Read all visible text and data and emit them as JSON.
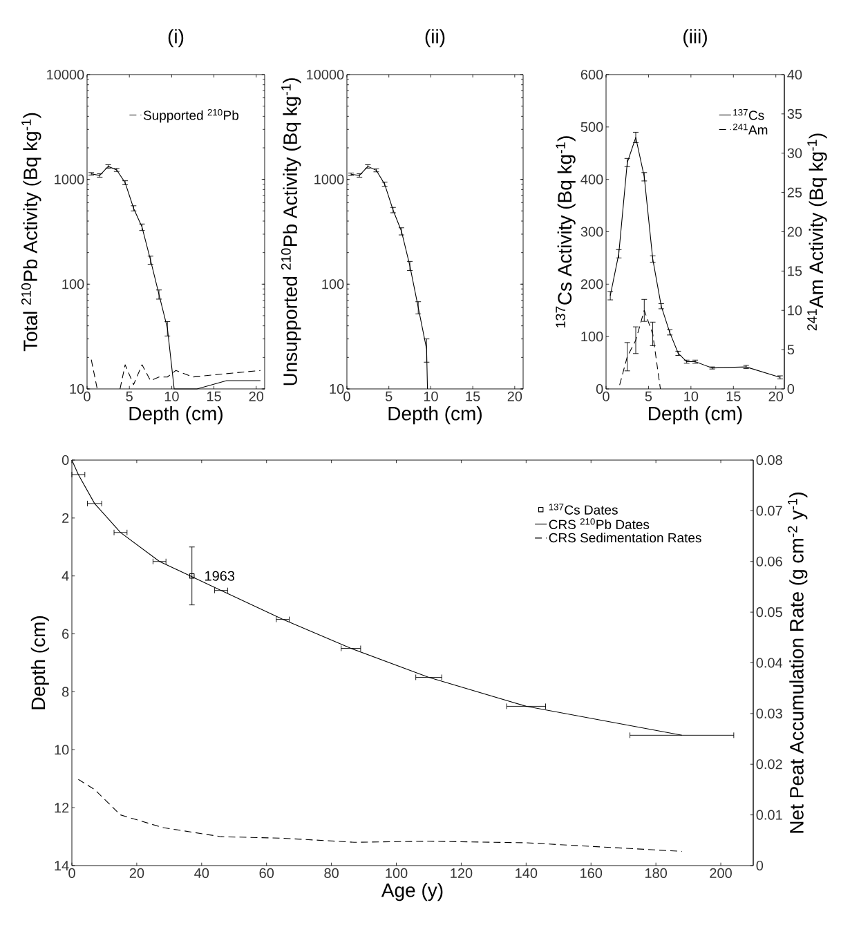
{
  "chart_data": [
    {
      "type": "line",
      "title": "(i)",
      "xlabel": "Depth (cm)",
      "ylabel": "Total $^{210}$Pb Activity (Bq kg$^{-1}$)",
      "log": "y",
      "xlim": [
        0,
        21
      ],
      "xticks": [
        0,
        5,
        10,
        15,
        20
      ],
      "ylim": [
        10,
        10000
      ],
      "yticks": [
        10,
        100,
        1000,
        10000
      ],
      "legend": "top",
      "series": [
        {
          "color": "#000000",
          "line_style": "solid",
          "x": [
            0.5,
            1.5,
            2.5,
            3.5,
            4.5,
            5.5,
            6.5,
            7.5,
            8.5,
            9.5,
            10.3,
            13,
            16.5,
            20.5
          ],
          "values": [
            1130,
            1090,
            1330,
            1230,
            930,
            530,
            350,
            170,
            80,
            38,
            10,
            10,
            12,
            12
          ],
          "errors": [
            30,
            40,
            50,
            40,
            40,
            30,
            25,
            15,
            8,
            6,
            null,
            null,
            null,
            null
          ]
        },
        {
          "name": "Supported $^{210}$Pb",
          "color": "#000000",
          "line_style": "dashed",
          "x": [
            0.5,
            1.2,
            2.5,
            3.9,
            4.5,
            5.5,
            6.5,
            7.5,
            8.5,
            9.5,
            10.5,
            12.5,
            16.5,
            20.5
          ],
          "values": [
            19,
            10,
            null,
            10,
            17,
            11,
            17,
            12,
            13,
            13,
            15,
            13,
            14,
            15
          ]
        }
      ]
    },
    {
      "type": "line",
      "title": "(ii)",
      "xlabel": "Depth (cm)",
      "ylabel": "Unsupported $^{210}$Pb Activity (Bq kg$^{-1}$)",
      "log": "y",
      "xlim": [
        0,
        21
      ],
      "xticks": [
        0,
        5,
        10,
        15,
        20
      ],
      "ylim": [
        10,
        10000
      ],
      "yticks": [
        10,
        100,
        1000,
        10000
      ],
      "series": [
        {
          "color": "#000000",
          "line_style": "solid",
          "x": [
            0.5,
            1.5,
            2.5,
            3.5,
            4.5,
            5.5,
            6.5,
            7.5,
            8.5,
            9.5,
            9.6
          ],
          "values": [
            1120,
            1090,
            1330,
            1220,
            900,
            510,
            320,
            150,
            60,
            24,
            10
          ],
          "errors": [
            30,
            40,
            50,
            40,
            40,
            30,
            25,
            15,
            8,
            6,
            null
          ]
        }
      ]
    },
    {
      "type": "line",
      "title": "(iii)",
      "xlabel": "Depth (cm)",
      "ylabel": "$^{137}$Cs Activity (Bq kg$^{-1}$)",
      "y2label": "$^{241}$Am Activity (Bq kg$^{-1}$)",
      "xlim": [
        0,
        21
      ],
      "xticks": [
        0,
        5,
        10,
        15,
        20
      ],
      "ylim": [
        0,
        600
      ],
      "yticks": [
        0,
        100,
        200,
        300,
        400,
        500,
        600
      ],
      "y2lim": [
        0,
        40
      ],
      "y2ticks": [
        0,
        5,
        10,
        15,
        20,
        25,
        30,
        35,
        40
      ],
      "legend": "top right",
      "series": [
        {
          "name": "$^{137}$Cs",
          "color": "#000000",
          "line_style": "solid",
          "x": [
            0.5,
            1.5,
            2.5,
            3.5,
            4.5,
            5.5,
            6.5,
            7.5,
            8.5,
            9.5,
            10.5,
            12.5,
            16.5,
            20.5
          ],
          "values": [
            178,
            258,
            432,
            480,
            405,
            248,
            158,
            108,
            68,
            52,
            52,
            40,
            42,
            22
          ],
          "errors": [
            8,
            8,
            8,
            10,
            8,
            6,
            5,
            5,
            4,
            3,
            3,
            2,
            3,
            3
          ]
        },
        {
          "name": "$^{241}$Am",
          "color": "#000000",
          "line_style": "dashed",
          "axis": "y2",
          "x": [
            1.6,
            2.5,
            3.5,
            4.5,
            5.5,
            6.4
          ],
          "values": [
            0.5,
            4.1,
            6.2,
            10,
            7,
            0
          ],
          "errors": [
            null,
            1.8,
            1.7,
            1.4,
            1.5,
            null
          ]
        }
      ]
    },
    {
      "type": "line",
      "xlabel": "Age (y)",
      "ylabel": "Depth (cm)",
      "y2label": "Net Peat Accumulation Rate (g cm$^{-2}$ y$^{-1}$)",
      "xlim": [
        0,
        210
      ],
      "xticks": [
        0,
        20,
        40,
        60,
        80,
        100,
        120,
        140,
        160,
        180,
        200
      ],
      "ylim": [
        14,
        0
      ],
      "yticks": [
        0,
        2,
        4,
        6,
        8,
        10,
        12,
        14
      ],
      "y2lim": [
        0,
        0.08
      ],
      "y2ticks": [
        0,
        0.01,
        0.02,
        0.03,
        0.04,
        0.05,
        0.06,
        0.07,
        0.08
      ],
      "legend": "top right",
      "annotations": [
        {
          "text": "1963",
          "x": 37,
          "y": 4
        }
      ],
      "series": [
        {
          "name": "$^{137}$Cs Dates",
          "type": "scatter",
          "marker": "square",
          "color": "#000000",
          "x": [
            37
          ],
          "values": [
            4
          ],
          "errors": [
            1
          ]
        },
        {
          "name": "CRS $^{210}$Pb Dates",
          "color": "#000000",
          "line_style": "solid",
          "x": [
            0,
            2,
            7,
            15,
            27,
            46,
            65,
            86,
            110,
            140,
            188
          ],
          "values": [
            0,
            0.5,
            1.5,
            2.5,
            3.5,
            4.5,
            5.5,
            6.5,
            7.5,
            8.5,
            9.5
          ],
          "xerrors": [
            null,
            2,
            2.2,
            2,
            2,
            2,
            2,
            3,
            4,
            6,
            16
          ]
        },
        {
          "name": "CRS Sedimentation Rates",
          "color": "#000000",
          "line_style": "dashed",
          "axis": "y2",
          "x": [
            2,
            7,
            15,
            28,
            46,
            65,
            87,
            110,
            140,
            188
          ],
          "values": [
            0.017,
            0.015,
            0.01,
            0.0075,
            0.0057,
            0.0054,
            0.0046,
            0.0048,
            0.0045,
            0.0028
          ]
        }
      ]
    }
  ]
}
